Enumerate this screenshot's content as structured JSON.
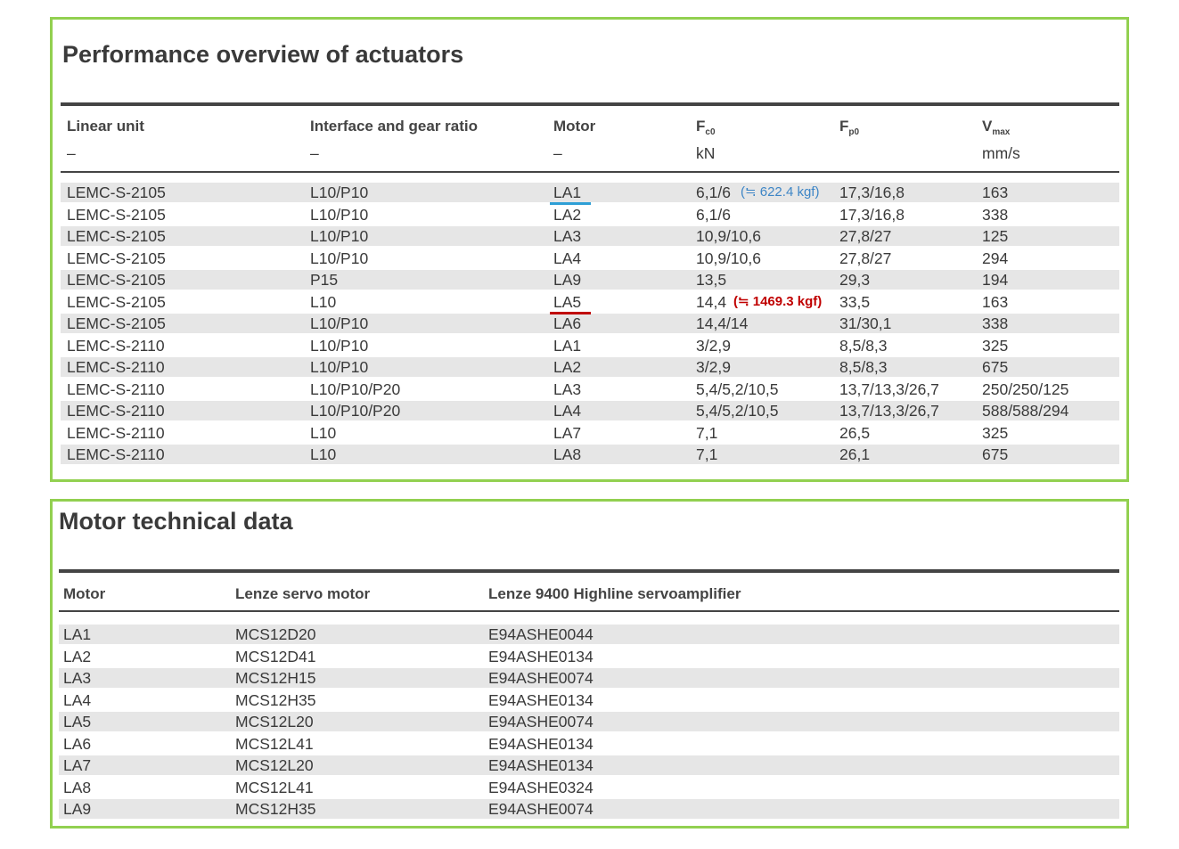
{
  "performance": {
    "title": "Performance overview of actuators",
    "headers": [
      {
        "label": "Linear unit",
        "unit": "–"
      },
      {
        "label": "Interface and gear ratio",
        "unit": "–"
      },
      {
        "label": "Motor",
        "unit": "–"
      },
      {
        "label": "F",
        "sub": "c0",
        "unit": "kN"
      },
      {
        "label": "F",
        "sub": "p0"
      },
      {
        "label": "V",
        "sub": "max",
        "unit": "mm/s"
      }
    ],
    "rows": [
      [
        "LEMC-S-2105",
        "L10/P10",
        "LA1",
        "6,1/6",
        "17,3/16,8",
        "163"
      ],
      [
        "LEMC-S-2105",
        "L10/P10",
        "LA2",
        "6,1/6",
        "17,3/16,8",
        "338"
      ],
      [
        "LEMC-S-2105",
        "L10/P10",
        "LA3",
        "10,9/10,6",
        "27,8/27",
        "125"
      ],
      [
        "LEMC-S-2105",
        "L10/P10",
        "LA4",
        "10,9/10,6",
        "27,8/27",
        "294"
      ],
      [
        "LEMC-S-2105",
        "P15",
        "LA9",
        "13,5",
        "29,3",
        "194"
      ],
      [
        "LEMC-S-2105",
        "L10",
        "LA5",
        "14,4",
        "33,5",
        "163"
      ],
      [
        "LEMC-S-2105",
        "L10/P10",
        "LA6",
        "14,4/14",
        "31/30,1",
        "338"
      ],
      [
        "LEMC-S-2110",
        "L10/P10",
        "LA1",
        "3/2,9",
        "8,5/8,3",
        "325"
      ],
      [
        "LEMC-S-2110",
        "L10/P10",
        "LA2",
        "3/2,9",
        "8,5/8,3",
        "675"
      ],
      [
        "LEMC-S-2110",
        "L10/P10/P20",
        "LA3",
        "5,4/5,2/10,5",
        "13,7/13,3/26,7",
        "250/250/125"
      ],
      [
        "LEMC-S-2110",
        "L10/P10/P20",
        "LA4",
        "5,4/5,2/10,5",
        "13,7/13,3/26,7",
        "588/588/294"
      ],
      [
        "LEMC-S-2110",
        "L10",
        "LA7",
        "7,1",
        "26,5",
        "325"
      ],
      [
        "LEMC-S-2110",
        "L10",
        "LA8",
        "7,1",
        "26,1",
        "675"
      ]
    ],
    "annotations": [
      "(≒ 622.4 kgf)",
      "(≒ 1469.3 kgf)"
    ]
  },
  "motors": {
    "title": "Motor technical data",
    "headers": [
      "Motor",
      "Lenze servo motor",
      "Lenze 9400 Highline servoamplifier"
    ],
    "rows": [
      [
        "LA1",
        "MCS12D20",
        "E94ASHE0044"
      ],
      [
        "LA2",
        "MCS12D41",
        "E94ASHE0134"
      ],
      [
        "LA3",
        "MCS12H15",
        "E94ASHE0074"
      ],
      [
        "LA4",
        "MCS12H35",
        "E94ASHE0134"
      ],
      [
        "LA5",
        "MCS12L20",
        "E94ASHE0074"
      ],
      [
        "LA6",
        "MCS12L41",
        "E94ASHE0134"
      ],
      [
        "LA7",
        "MCS12L20",
        "E94ASHE0134"
      ],
      [
        "LA8",
        "MCS12L41",
        "E94ASHE0324"
      ],
      [
        "LA9",
        "MCS12H35",
        "E94ASHE0074"
      ]
    ]
  }
}
